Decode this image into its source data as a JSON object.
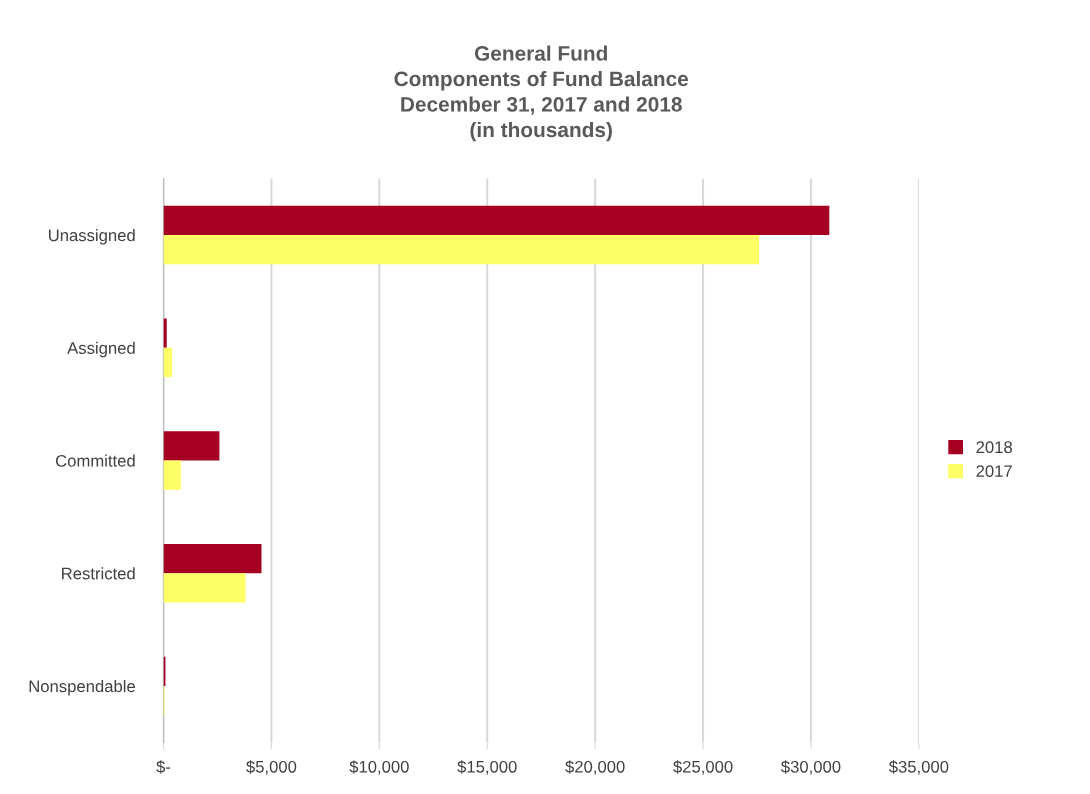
{
  "chart_data": {
    "type": "bar",
    "orientation": "horizontal",
    "title": "General Fund\nComponents of Fund Balance\nDecember 31, 2017 and 2018\n(in thousands)",
    "categories": [
      "Unassigned",
      "Assigned",
      "Committed",
      "Restricted",
      "Nonspendable"
    ],
    "series": [
      {
        "name": "2018",
        "color": "#a50021",
        "values": [
          30850,
          150,
          2590,
          4540,
          90
        ]
      },
      {
        "name": "2017",
        "color": "#ffff66",
        "values": [
          27600,
          400,
          800,
          3800,
          50
        ]
      }
    ],
    "xlim": [
      0,
      35000
    ],
    "xticks": [
      {
        "value": 0,
        "label": "$-"
      },
      {
        "value": 5000,
        "label": "$5,000"
      },
      {
        "value": 10000,
        "label": "$10,000"
      },
      {
        "value": 15000,
        "label": "$15,000"
      },
      {
        "value": 20000,
        "label": "$20,000"
      },
      {
        "value": 25000,
        "label": "$25,000"
      },
      {
        "value": 30000,
        "label": "$30,000"
      },
      {
        "value": 35000,
        "label": "$35,000"
      }
    ],
    "grid": "x",
    "legend": "right"
  }
}
